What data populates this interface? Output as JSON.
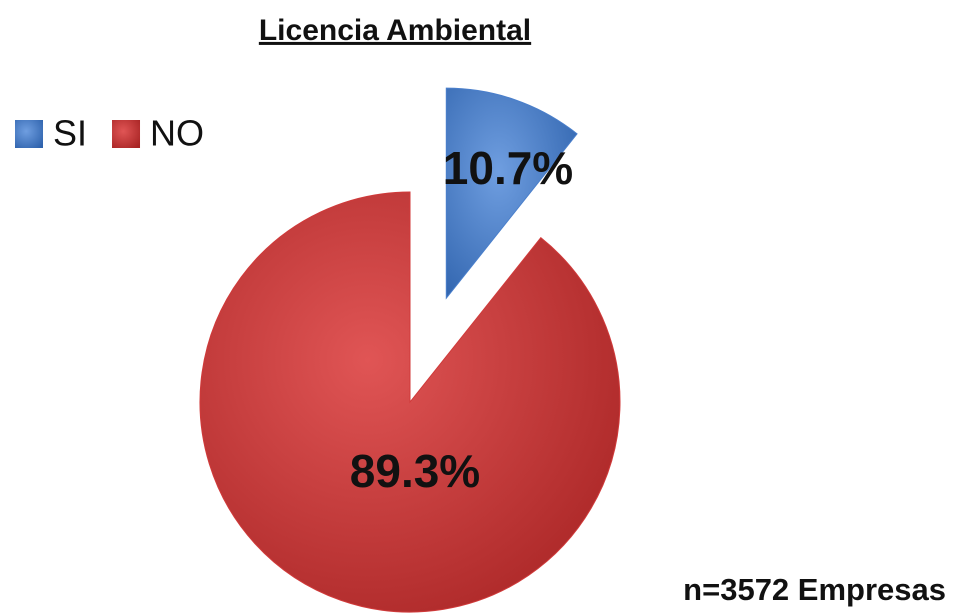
{
  "chart_data": {
    "type": "pie",
    "title": "Licencia Ambiental",
    "categories": [
      "SI",
      "NO"
    ],
    "values": [
      10.7,
      89.3
    ],
    "value_labels": [
      "10.7%",
      "89.3%"
    ],
    "colors": [
      "#4a7fcb",
      "#d03a3a"
    ],
    "legend": "top-left",
    "annotation": "n=3572 Empresas"
  }
}
